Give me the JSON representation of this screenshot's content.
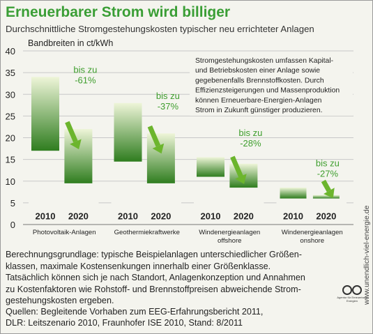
{
  "header": {
    "title": "Erneuerbarer Strom wird billiger",
    "subtitle": "Durchschnittliche Stromgestehungskosten typischer neu errichteter Anlagen"
  },
  "info_box": {
    "lines": [
      "Stromgestehungskosten umfassen Kapital-",
      "und Betriebskosten einer Anlage sowie",
      "gegebenenfalls Brennstoffkosten. Durch",
      "Effizienzsteigerungen und Massenproduktion",
      "können Erneuerbare-Energien-Anlagen",
      "Strom in Zukunft günstiger produzieren."
    ]
  },
  "notes": {
    "lines": [
      "Berechnungsgrundlage: typische Beispielanlagen unterschiedlicher Größen-",
      "klassen, maximale Kostensenkungen innerhalb einer Größenklasse.",
      "Tatsächlich können sich je nach Standort, Anlagenkonzeption und Annahmen",
      "zu Kostenfaktoren wie Rohstoff- und Brennstoffpreisen abweichende Strom-",
      "gestehungskosten ergeben."
    ]
  },
  "sources": {
    "lines": [
      "Quellen: Begleitende Vorhaben zum EEG-Erfahrungsbericht 2011,",
      "DLR: Leitszenario 2010, Fraunhofer ISE 2010, Stand: 8/2011"
    ]
  },
  "side_text": "www.unendlich-viel-energie.de",
  "logo": {
    "text": "Agentur für Erneuerbare Energien"
  },
  "colors": {
    "title": "#3a9e35",
    "bar_dark": "#2f7d1f",
    "bar_light": "#eef5d8",
    "label_green": "#3f9e2e",
    "arrow": "#6cb52d",
    "grid": "#c8c8c8"
  },
  "chart_data": {
    "type": "bar",
    "chart_subtype": "floating-range",
    "ylabel": "Bandbreiten in ct/kWh",
    "ylim": [
      0,
      40
    ],
    "yticks": [
      0,
      5,
      10,
      15,
      20,
      25,
      30,
      35,
      40
    ],
    "grid": true,
    "years": [
      "2010",
      "2020"
    ],
    "groups": [
      {
        "name": "Photovoltaik-Anlagen",
        "ranges": [
          [
            17,
            34
          ],
          [
            9.5,
            22
          ]
        ],
        "reduction": [
          "bis zu",
          "-61%"
        ]
      },
      {
        "name": "Geothermiekraftwerke",
        "ranges": [
          [
            14.5,
            28
          ],
          [
            9.5,
            21
          ]
        ],
        "reduction": [
          "bis zu",
          "-37%"
        ]
      },
      {
        "name": "Windenergieanlagen offshore",
        "name_lines": [
          "Windenergieanlagen",
          "offshore"
        ],
        "ranges": [
          [
            11,
            15.5
          ],
          [
            8.5,
            14
          ]
        ],
        "reduction": [
          "bis zu",
          "-28%"
        ]
      },
      {
        "name": "Windenergieanlagen onshore",
        "name_lines": [
          "Windenergieanlagen",
          "onshore"
        ],
        "ranges": [
          [
            6,
            8.5
          ],
          [
            6,
            6.8
          ]
        ],
        "reduction": [
          "bis zu",
          "-27%"
        ]
      }
    ]
  }
}
